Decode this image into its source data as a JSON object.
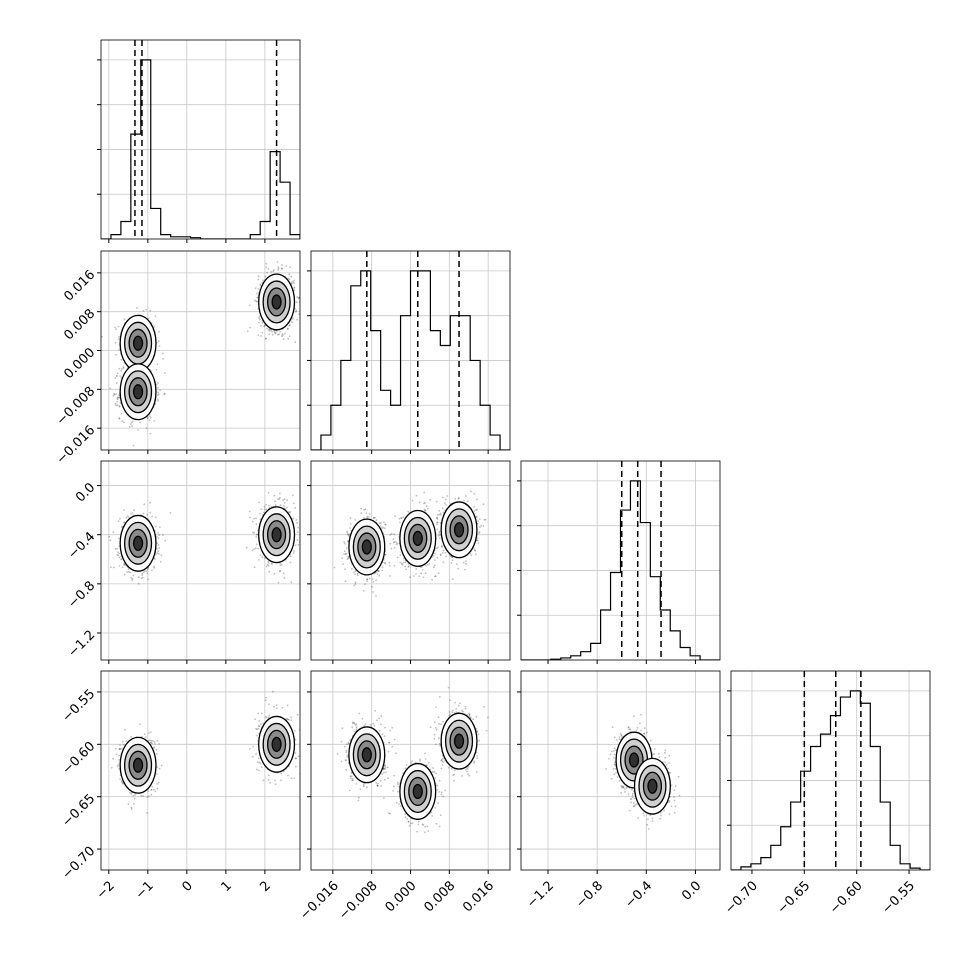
{
  "chart_data": {
    "type": "corner",
    "grid": true,
    "params": [
      {
        "range": [
          -2.2,
          2.9
        ],
        "ticks": [
          -2,
          -1,
          0,
          1,
          2
        ],
        "tick_labels": [
          "−2",
          "−1",
          "0",
          "1",
          "2"
        ],
        "quantiles": [
          -1.33,
          -1.15,
          2.3
        ],
        "hist": {
          "edges": [
            -2.2,
            -1.945,
            -1.69,
            -1.435,
            -1.18,
            -0.925,
            -0.67,
            -0.415,
            -0.16,
            0.095,
            0.35,
            0.605,
            0.86,
            1.115,
            1.37,
            1.625,
            1.88,
            2.135,
            2.39,
            2.645,
            2.9
          ],
          "counts": [
            0,
            1,
            4,
            24,
            41,
            7,
            1,
            0.5,
            0.5,
            0.3,
            0,
            0,
            0,
            0,
            0,
            1,
            4,
            20,
            13,
            1
          ]
        }
      },
      {
        "range": [
          -0.0205,
          0.0205
        ],
        "ticks": [
          -0.016,
          -0.008,
          0.0,
          0.008,
          0.016
        ],
        "tick_labels": [
          "−0.016",
          "−0.008",
          "0.000",
          "0.008",
          "0.016"
        ],
        "quantiles": [
          -0.009,
          0.0015,
          0.01
        ],
        "hist": {
          "edges": [
            -0.0205,
            -0.01845,
            -0.0164,
            -0.01435,
            -0.0123,
            -0.01025,
            -0.0082,
            -0.00615,
            -0.0041,
            -0.00205,
            0.0,
            0.00205,
            0.0041,
            0.00615,
            0.0082,
            0.01025,
            0.0123,
            0.01435,
            0.0164,
            0.01845,
            0.0205
          ],
          "counts": [
            0,
            1,
            3,
            6,
            11,
            12,
            8,
            4,
            3,
            9,
            12,
            12,
            8,
            7,
            9,
            9,
            6,
            3,
            1,
            0
          ]
        }
      },
      {
        "range": [
          -1.42,
          0.2
        ],
        "ticks": [
          -1.2,
          -0.8,
          -0.4,
          0.0
        ],
        "tick_labels": [
          "−1.2",
          "−0.8",
          "−0.4",
          "0.0"
        ],
        "quantiles": [
          -0.6,
          -0.47,
          -0.28
        ],
        "hist": {
          "edges": [
            -1.42,
            -1.339,
            -1.258,
            -1.177,
            -1.096,
            -1.015,
            -0.934,
            -0.853,
            -0.772,
            -0.691,
            -0.61,
            -0.529,
            -0.448,
            -0.367,
            -0.286,
            -0.205,
            -0.124,
            -0.043,
            0.038,
            0.119,
            0.2
          ],
          "counts": [
            0,
            0,
            0,
            0.2,
            0.5,
            1,
            2,
            4,
            12,
            21,
            36,
            43,
            33,
            20,
            12,
            7,
            3,
            1,
            0,
            0
          ]
        }
      },
      {
        "range": [
          -0.72,
          -0.53
        ],
        "ticks": [
          -0.7,
          -0.65,
          -0.6,
          -0.55
        ],
        "tick_labels": [
          "−0.70",
          "−0.65",
          "−0.60",
          "−0.55"
        ],
        "quantiles": [
          -0.65,
          -0.62,
          -0.596
        ],
        "hist": {
          "edges": [
            -0.72,
            -0.7105,
            -0.701,
            -0.6915,
            -0.682,
            -0.6725,
            -0.663,
            -0.6535,
            -0.644,
            -0.6345,
            -0.625,
            -0.6155,
            -0.606,
            -0.5965,
            -0.587,
            -0.5775,
            -0.568,
            -0.5585,
            -0.549,
            -0.5395,
            -0.53
          ],
          "counts": [
            0,
            0.5,
            1,
            2,
            4,
            7,
            11,
            16,
            20,
            22,
            25,
            28,
            29,
            27,
            20,
            11,
            4,
            1,
            0.3,
            0
          ]
        }
      }
    ],
    "clusters_2d": {
      "1-0": [
        {
          "x": -1.25,
          "y": 0.0015,
          "w": 0.6
        },
        {
          "x": -1.25,
          "y": -0.0085,
          "w": 1.0
        },
        {
          "x": 2.3,
          "y": 0.01,
          "w": 1.2
        }
      ],
      "2-0": [
        {
          "x": -1.25,
          "y": -0.47,
          "w": 1.0
        },
        {
          "x": 2.3,
          "y": -0.4,
          "w": 0.9
        }
      ],
      "2-1": [
        {
          "x": -0.009,
          "y": -0.5,
          "w": 1.0
        },
        {
          "x": 0.0015,
          "y": -0.43,
          "w": 0.9
        },
        {
          "x": 0.01,
          "y": -0.36,
          "w": 0.9
        }
      ],
      "3-0": [
        {
          "x": -1.25,
          "y": -0.62,
          "w": 1.0
        },
        {
          "x": 2.3,
          "y": -0.6,
          "w": 0.9
        }
      ],
      "3-1": [
        {
          "x": -0.009,
          "y": -0.61,
          "w": 1.0
        },
        {
          "x": 0.0015,
          "y": -0.645,
          "w": 1.0
        },
        {
          "x": 0.01,
          "y": -0.597,
          "w": 0.9
        }
      ],
      "3-2": [
        {
          "x": -0.5,
          "y": -0.615,
          "w": 1.0
        },
        {
          "x": -0.35,
          "y": -0.64,
          "w": 0.7
        }
      ]
    }
  }
}
